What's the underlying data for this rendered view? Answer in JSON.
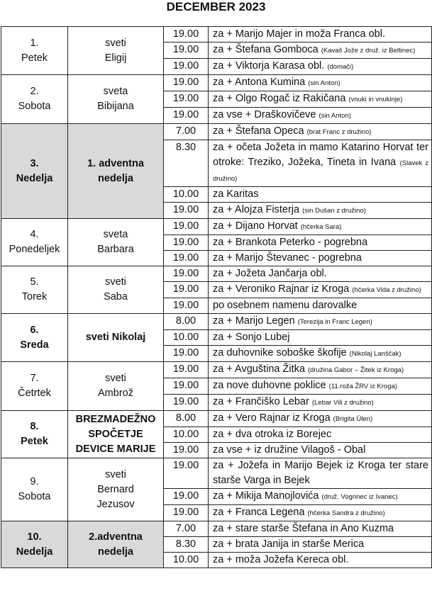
{
  "title": "DECEMBER 2023",
  "days": [
    {
      "date": "1.",
      "day": "Petek",
      "saint": [
        "sveti",
        "Eligij"
      ],
      "bold": false,
      "shaded": false,
      "masses": [
        {
          "time": "19.00",
          "text": "za + Marijo Majer in moža Franca obl.",
          "note": ""
        },
        {
          "time": "19.00",
          "text": "za + Štefana Gomboca",
          "note": "(Kavaš Jože z druž. iz Beltinec)"
        },
        {
          "time": "19.00",
          "text": "za + Viktorja Karasa obl.",
          "note": "(domači)"
        }
      ]
    },
    {
      "date": "2.",
      "day": "Sobota",
      "saint": [
        "sveta",
        "Bibijana"
      ],
      "bold": false,
      "shaded": false,
      "masses": [
        {
          "time": "19.00",
          "text": "za + Antona Kumina",
          "note": "(sin Anton)"
        },
        {
          "time": "19.00",
          "text": "za + Olgo Rogač iz Rakičana",
          "note": "(vnuki in vnukinje)"
        },
        {
          "time": "19.00",
          "text": "za vse + Draškovičeve",
          "note": "(sin Anton)"
        }
      ]
    },
    {
      "date": "3.",
      "day": "Nedelja",
      "saint": [
        "1. adventna",
        "nedelja"
      ],
      "bold": true,
      "shaded": true,
      "masses": [
        {
          "time": "7.00",
          "text": "za + Štefana Opeca",
          "note": "(brat Franc z družino)"
        },
        {
          "time": "8.30",
          "text": "za + očeta Jožeta in mamo Katarino Horvat ter otroke: Treziko, Jožeka, Tineta in Ivana",
          "note": "(Slavek z družino)"
        },
        {
          "time": "10.00",
          "text": "za Karitas",
          "note": ""
        },
        {
          "time": "19.00",
          "text": "za + Alojza Fisterja",
          "note": "(sin Dušan z družino)"
        }
      ]
    },
    {
      "date": "4.",
      "day": "Ponedeljek",
      "saint": [
        "sveta",
        "Barbara"
      ],
      "bold": false,
      "shaded": false,
      "masses": [
        {
          "time": "19.00",
          "text": "za + Dijano Horvat",
          "note": "(hčerka Sara)"
        },
        {
          "time": "19.00",
          "text": "za + Brankota Peterko - pogrebna",
          "note": ""
        },
        {
          "time": "19.00",
          "text": "za + Marijo Števanec - pogrebna",
          "note": ""
        }
      ]
    },
    {
      "date": "5.",
      "day": "Torek",
      "saint": [
        "sveti",
        "Saba"
      ],
      "bold": false,
      "shaded": false,
      "masses": [
        {
          "time": "19.00",
          "text": "za + Jožeta Jančarja obl.",
          "note": ""
        },
        {
          "time": "19.00",
          "text": "za + Veroniko Rajnar iz Kroga",
          "note": "(hčerka Vida z družino)"
        },
        {
          "time": "19.00",
          "text": "po osebnem namenu darovalke",
          "note": ""
        }
      ]
    },
    {
      "date": "6.",
      "day": "Sreda",
      "saint": [
        "sveti Nikolaj"
      ],
      "bold": true,
      "shaded": false,
      "masses": [
        {
          "time": "8.00",
          "text": "za + Marijo Legen",
          "note": "(Terezija in Franc Legen)"
        },
        {
          "time": "10.00",
          "text": "za + Sonjo Lubej",
          "note": ""
        },
        {
          "time": "19.00",
          "text": "za duhovnike soboške škofije",
          "note": "(Nikolaj Lanščak)"
        }
      ]
    },
    {
      "date": "7.",
      "day": "Četrtek",
      "saint": [
        "sveti",
        "Ambrož"
      ],
      "bold": false,
      "shaded": false,
      "masses": [
        {
          "time": "19.00",
          "text": "za + Avguština Žitka",
          "note": "(družina Gabor – Žitek iz Kroga)"
        },
        {
          "time": "19.00",
          "text": "za nove duhovne poklice",
          "note": "(11.roža ŽRV iz Kroga)"
        },
        {
          "time": "19.00",
          "text": "za + Frančiško Lebar",
          "note": "(Lebar Vili z družino)"
        }
      ]
    },
    {
      "date": "8.",
      "day": "Petek",
      "saint": [
        "BREZMADEŽNO",
        "SPOČETJE",
        "DEVICE MARIJE"
      ],
      "bold": true,
      "shaded": false,
      "masses": [
        {
          "time": "8.00",
          "text": "za + Vero Rajnar iz Kroga",
          "note": "(Brigita Ülen)"
        },
        {
          "time": "10.00",
          "text": "za + dva otroka iz Borejec",
          "note": ""
        },
        {
          "time": "19.00",
          "text": "za vse + iz družine Vilagoš - Obal",
          "note": ""
        }
      ]
    },
    {
      "date": "9.",
      "day": "Sobota",
      "saint": [
        "sveti",
        "Bernard",
        "Jezusov"
      ],
      "bold": false,
      "shaded": false,
      "masses": [
        {
          "time": "19.00",
          "text": "za + Jožefa in Marijo Bejek iz Kroga ter stare starše Varga in Bejek",
          "note": ""
        },
        {
          "time": "19.00",
          "text": "za + Mikija Manojlovića",
          "note": "(druž. Vogrinec iz Ivanec)"
        },
        {
          "time": "19.00",
          "text": "za + Franca Legena",
          "note": "(hčerka Sandra z družino)"
        }
      ]
    },
    {
      "date": "10.",
      "day": "Nedelja",
      "saint": [
        "2.adventna",
        "nedelja"
      ],
      "bold": true,
      "shaded": true,
      "masses": [
        {
          "time": "7.00",
          "text": "za + stare starše Štefana in Ano Kuzma",
          "note": ""
        },
        {
          "time": "8.30",
          "text": "za + brata Janija in starše Merica",
          "note": ""
        },
        {
          "time": "10.00",
          "text": "za + moža Jožefa Kereca obl.",
          "note": ""
        }
      ]
    }
  ]
}
